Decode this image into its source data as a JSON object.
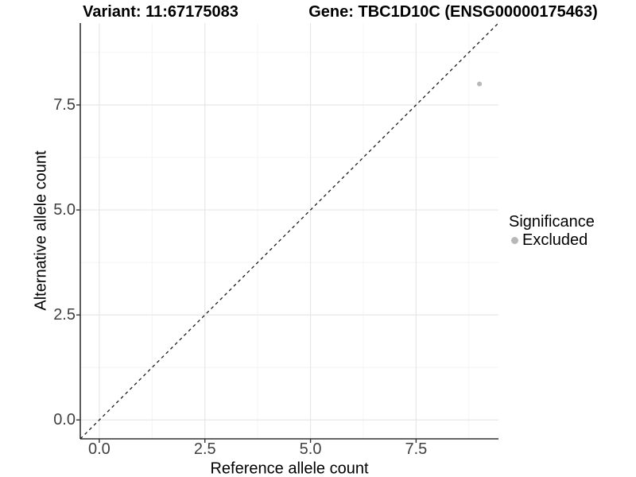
{
  "chart_data": {
    "type": "scatter",
    "title_left": "Variant: 11:67175083",
    "title_right": "Gene: TBC1D10C (ENSG00000175463)",
    "xlabel": "Reference allele count",
    "ylabel": "Alternative allele count",
    "xlim": [
      -0.45,
      9.45
    ],
    "ylim": [
      -0.45,
      9.45
    ],
    "x_ticks": {
      "values": [
        0,
        2.5,
        5,
        7.5
      ],
      "labels": [
        "0.0",
        "2.5",
        "5.0",
        "7.5"
      ]
    },
    "y_ticks": {
      "values": [
        0,
        2.5,
        5,
        7.5
      ],
      "labels": [
        "0.0",
        "2.5",
        "5.0",
        "7.5"
      ]
    },
    "minor_ticks": [
      1.25,
      3.75,
      6.25,
      8.75
    ],
    "grid": {
      "on": true,
      "major_color": "#e7e7e7",
      "minor_color": "#f4f4f4"
    },
    "identity_line": {
      "slope": 1,
      "intercept": 0,
      "style": "dashed",
      "color": "#1a1a1a"
    },
    "series": [
      {
        "name": "Excluded",
        "color": "#b8b8b8",
        "points": [
          [
            9,
            8
          ]
        ]
      }
    ],
    "legend": {
      "title": "Significance",
      "position": "right",
      "entries": [
        {
          "label": "Excluded",
          "color": "#b8b8b8"
        }
      ]
    },
    "axis_color": "#333333",
    "tick_label_color": "#404040"
  }
}
